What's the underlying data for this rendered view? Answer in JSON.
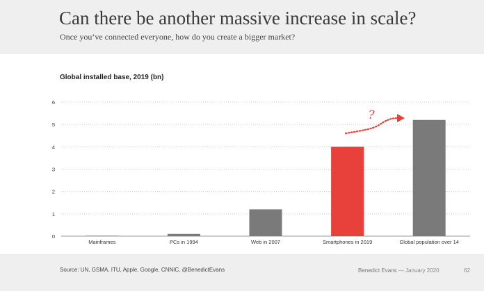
{
  "slide": {
    "title": "Can there be another massive increase in scale?",
    "subtitle": "Once you’ve connected everyone, how do you create a bigger market?"
  },
  "chart_data": {
    "type": "bar",
    "title": "Global installed base, 2019 (bn)",
    "xlabel": "",
    "ylabel": "",
    "categories": [
      "Mainframes",
      "PCs in 1994",
      "Web in 2007",
      "Smartphones in 2019",
      "Global population over 14"
    ],
    "values": [
      0.02,
      0.1,
      1.2,
      4.0,
      5.2
    ],
    "ylim": [
      0,
      6
    ],
    "yticks": [
      0,
      1,
      2,
      3,
      4,
      5,
      6
    ],
    "grid": true,
    "bar_colors": [
      "#7a7a7a",
      "#7a7a7a",
      "#7a7a7a",
      "#e8403a",
      "#7a7a7a"
    ],
    "annotation": "?",
    "annotation_color": "#e8403a"
  },
  "footer": {
    "source": "Source: UN, GSMA, ITU, Apple, Google, CNNIC, @BenedictEvans",
    "author": "Benedict Evans",
    "date": "— January 2020",
    "page": "62"
  }
}
